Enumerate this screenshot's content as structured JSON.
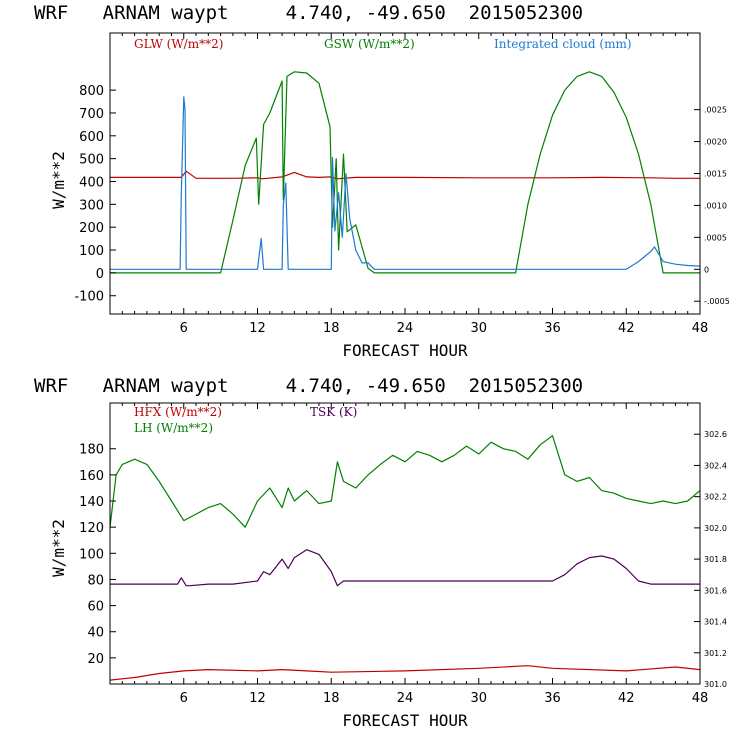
{
  "chart_data": [
    {
      "type": "line",
      "title": "WRF   ARNAM waypt     4.740, -49.650  2015052300",
      "xlabel": "FORECAST HOUR",
      "ylabel": "W/m**2",
      "xlim": [
        0,
        48
      ],
      "ylim": [
        -180,
        1050
      ],
      "yticks": [
        -100,
        0,
        100,
        200,
        300,
        400,
        500,
        600,
        700,
        800
      ],
      "xticks": [
        6,
        12,
        18,
        24,
        30,
        36,
        42,
        48
      ],
      "y2lim": [
        -0.0007,
        0.0037
      ],
      "y2ticks": [
        -0.0005,
        0,
        0.0005,
        0.001,
        0.0015,
        0.002,
        0.0025
      ],
      "y2ticklabels": [
        "-.0005",
        "0",
        ".0005",
        ".0010",
        ".0015",
        ".0020",
        ".0025"
      ],
      "series": [
        {
          "name": "GLW (W/m**2)",
          "color": "#c00000",
          "axis": "left",
          "x": [
            0,
            3,
            5.8,
            6.2,
            7,
            10,
            12,
            12.4,
            14,
            15,
            16,
            17,
            18,
            18.5,
            20,
            24,
            30,
            36,
            40,
            44,
            46,
            48
          ],
          "y": [
            418,
            418,
            418,
            445,
            414,
            414,
            416,
            412,
            420,
            440,
            420,
            418,
            420,
            412,
            418,
            418,
            416,
            416,
            418,
            416,
            414,
            414
          ]
        },
        {
          "name": "GSW (W/m**2)",
          "color": "#008000",
          "axis": "left",
          "x": [
            0,
            9,
            10,
            11,
            11.9,
            12.1,
            12.5,
            13,
            14,
            14.1,
            14.4,
            15,
            16,
            17,
            17.9,
            18.1,
            18.4,
            18.6,
            19,
            19.3,
            20,
            21,
            21.5,
            33,
            34,
            35,
            36,
            37,
            38,
            39,
            40,
            41,
            42,
            43,
            44,
            45,
            48
          ],
          "y": [
            0,
            0,
            230,
            470,
            590,
            300,
            650,
            700,
            840,
            320,
            860,
            880,
            875,
            830,
            640,
            200,
            500,
            100,
            520,
            180,
            210,
            20,
            0,
            0,
            300,
            520,
            690,
            800,
            860,
            880,
            860,
            790,
            680,
            520,
            300,
            0,
            0
          ]
        },
        {
          "name": "Integrated cloud (mm)",
          "color": "#1f78d1",
          "axis": "right",
          "x": [
            0,
            5.7,
            5.8,
            6.0,
            6.1,
            6.2,
            12,
            12.3,
            12.5,
            14,
            14.1,
            14.3,
            14.5,
            18,
            18.1,
            18.3,
            18.6,
            18.9,
            19.2,
            19.5,
            20,
            20.5,
            21,
            21.5,
            42,
            43,
            43.5,
            44,
            44.3,
            45,
            46,
            47,
            48
          ],
          "y": [
            0,
            0,
            0.00118,
            0.0027,
            0.0025,
            0,
            0,
            0.00048,
            0,
            0,
            0.001,
            0.00135,
            0,
            0,
            0.00175,
            0.0006,
            0.0012,
            0.0005,
            0.0015,
            0.0008,
            0.0003,
            0.0001,
            0.0001,
            0,
            0,
            0.00012,
            0.0002,
            0.00028,
            0.00035,
            0.00012,
            8e-05,
            6e-05,
            5e-05
          ]
        }
      ],
      "legend": [
        {
          "label": "GLW (W/m**2)",
          "color": "#c00000"
        },
        {
          "label": "GSW (W/m**2)",
          "color": "#008000"
        },
        {
          "label": "Integrated cloud (mm)",
          "color": "#1f78d1"
        }
      ]
    },
    {
      "type": "line",
      "title": "WRF   ARNAM waypt     4.740, -49.650  2015052300",
      "xlabel": "FORECAST HOUR",
      "ylabel": "W/m**2",
      "xlim": [
        0,
        48
      ],
      "ylim": [
        0,
        215
      ],
      "yticks": [
        20,
        40,
        60,
        80,
        100,
        120,
        140,
        160,
        180
      ],
      "xticks": [
        6,
        12,
        18,
        24,
        30,
        36,
        42,
        48
      ],
      "y2lim": [
        301.0,
        302.8
      ],
      "y2ticks": [
        301.0,
        301.2,
        301.4,
        301.6,
        301.8,
        302.0,
        302.2,
        302.4,
        302.6
      ],
      "y2ticklabels": [
        "301.0",
        "301.2",
        "301.4",
        "301.6",
        "301.8",
        "302.0",
        "302.2",
        "302.4",
        "302.6"
      ],
      "series": [
        {
          "name": "HFX (W/m**2)",
          "color": "#c00000",
          "axis": "left",
          "x": [
            0,
            2,
            4,
            6,
            8,
            12,
            14,
            16,
            18,
            24,
            30,
            34,
            36,
            42,
            46,
            48
          ],
          "y": [
            3,
            5,
            8,
            10,
            11,
            10,
            11,
            10,
            9,
            10,
            12,
            14,
            12,
            10,
            13,
            11
          ]
        },
        {
          "name": "LH (W/m**2)",
          "color": "#008000",
          "axis": "left",
          "x": [
            0,
            0.5,
            1,
            2,
            3,
            4,
            5,
            6,
            7,
            8,
            9,
            10,
            11,
            12,
            13,
            14,
            14.5,
            15,
            16,
            17,
            18,
            18.5,
            19,
            20,
            21,
            22,
            23,
            24,
            25,
            26,
            27,
            28,
            29,
            30,
            31,
            32,
            33,
            34,
            35,
            36,
            37,
            38,
            39,
            40,
            41,
            42,
            43,
            44,
            45,
            46,
            47,
            48
          ],
          "y": [
            120,
            160,
            168,
            172,
            168,
            155,
            140,
            125,
            130,
            135,
            138,
            130,
            120,
            140,
            150,
            135,
            150,
            140,
            148,
            138,
            140,
            170,
            155,
            150,
            160,
            168,
            175,
            170,
            178,
            175,
            170,
            175,
            182,
            176,
            185,
            180,
            178,
            172,
            183,
            190,
            160,
            155,
            158,
            148,
            146,
            142,
            140,
            138,
            140,
            138,
            140,
            148
          ]
        },
        {
          "name": "TSK (K)",
          "color": "#4b0055",
          "axis": "right",
          "x": [
            0,
            5.5,
            5.8,
            6.2,
            6.5,
            8,
            10,
            12,
            12.5,
            13,
            14,
            14.5,
            15,
            16,
            17,
            18,
            18.5,
            19,
            21,
            24,
            30,
            36,
            37,
            38,
            39,
            40,
            41,
            42,
            43,
            44,
            46,
            48
          ],
          "y": [
            301.64,
            301.64,
            301.68,
            301.63,
            301.63,
            301.64,
            301.64,
            301.66,
            301.72,
            301.7,
            301.8,
            301.74,
            301.81,
            301.86,
            301.83,
            301.72,
            301.63,
            301.66,
            301.66,
            301.66,
            301.66,
            301.66,
            301.7,
            301.77,
            301.81,
            301.82,
            301.8,
            301.74,
            301.66,
            301.64,
            301.64,
            301.64
          ]
        }
      ],
      "legend": [
        {
          "label": "HFX (W/m**2)",
          "color": "#c00000"
        },
        {
          "label": "LH  (W/m**2)",
          "color": "#008000"
        },
        {
          "label": "TSK (K)",
          "color": "#4b0055"
        }
      ]
    }
  ]
}
